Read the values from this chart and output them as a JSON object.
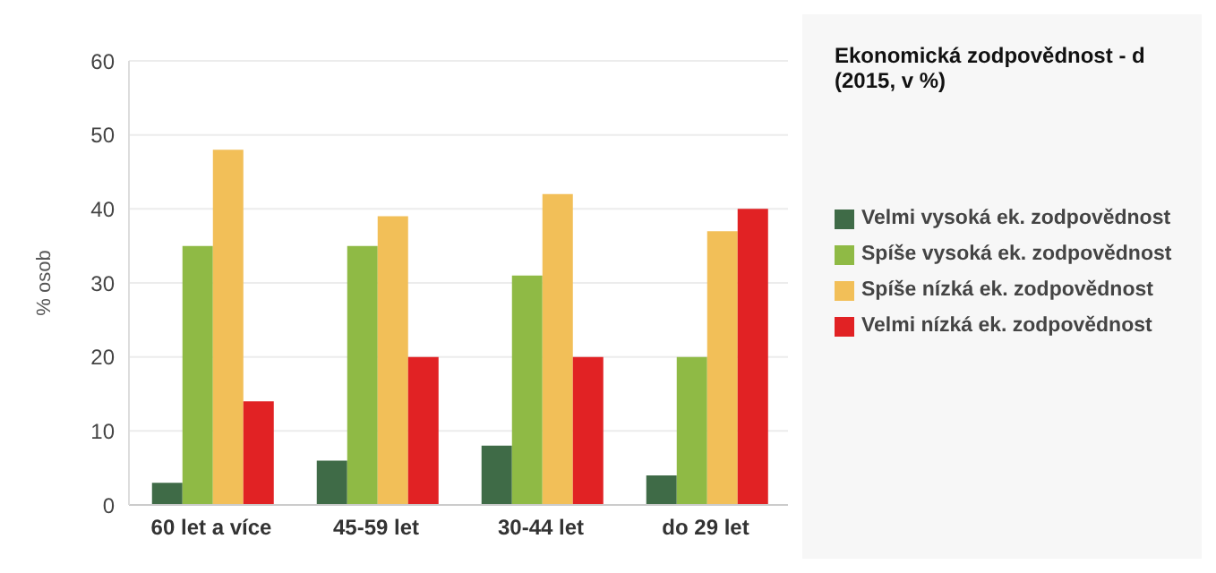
{
  "chart_data": {
    "type": "bar",
    "title": "Ekonomická zodpovědnost - d (2015, v %)",
    "ylabel": "% osob",
    "categories": [
      "60 let a více",
      "45-59 let",
      "30-44 let",
      "do 29 let"
    ],
    "series": [
      {
        "name": "Velmi vysoká ek. zodpovědnost",
        "color": "#3f6b47",
        "values": [
          3,
          6,
          8,
          4
        ]
      },
      {
        "name": "Spíše vysoká ek. zodpovědnost",
        "color": "#8fba45",
        "values": [
          35,
          35,
          31,
          20
        ]
      },
      {
        "name": "Spíše nízká ek. zodpovědnost",
        "color": "#f2bf58",
        "values": [
          48,
          39,
          42,
          37
        ]
      },
      {
        "name": "Velmi nízká ek. zodpovědnost",
        "color": "#e12224",
        "values": [
          14,
          20,
          20,
          40
        ]
      }
    ],
    "ylim": [
      0,
      60
    ],
    "yticks": [
      0,
      10,
      20,
      30,
      40,
      50,
      60
    ],
    "grid": "y",
    "legend": "right"
  }
}
